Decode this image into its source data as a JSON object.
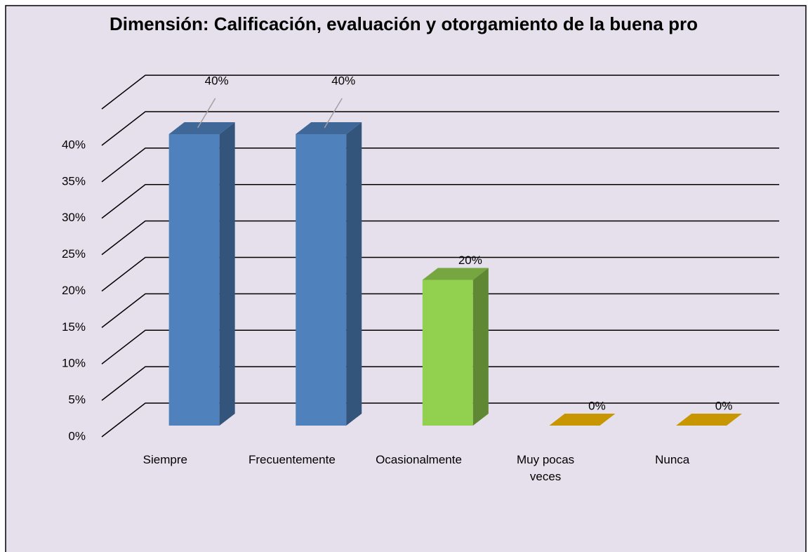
{
  "chart_data": {
    "type": "bar3d",
    "title": "Dimensión: Calificación, evaluación y otorgamiento de la buena pro",
    "categories": [
      "Siempre",
      "Frecuentemente",
      "Ocasionalmente",
      "Muy pocas veces",
      "Nunca"
    ],
    "values": [
      40,
      40,
      20,
      0,
      0
    ],
    "value_labels": [
      "40%",
      "40%",
      "20%",
      "0%",
      "0%"
    ],
    "colors": [
      "#4f81bd",
      "#4f81bd",
      "#92d050",
      "#c89600",
      "#c89600"
    ],
    "ylim": [
      0,
      45
    ],
    "yticks": [
      {
        "value": 0,
        "label": "0%"
      },
      {
        "value": 5,
        "label": "5%"
      },
      {
        "value": 10,
        "label": "10%"
      },
      {
        "value": 15,
        "label": "15%"
      },
      {
        "value": 20,
        "label": "20%"
      },
      {
        "value": 25,
        "label": "25%"
      },
      {
        "value": 30,
        "label": "30%"
      },
      {
        "value": 35,
        "label": "35%"
      },
      {
        "value": 40,
        "label": "40%"
      }
    ],
    "grid": true
  }
}
